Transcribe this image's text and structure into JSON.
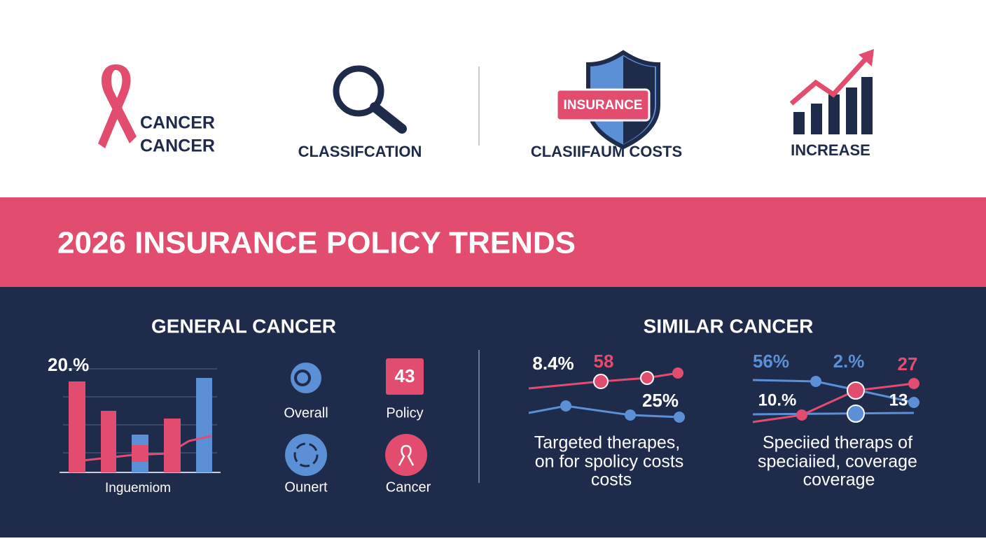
{
  "top": {
    "items": [
      {
        "lines": [
          "CANCER",
          "CANCER"
        ]
      },
      {
        "label": "CLASSIFCATION"
      },
      {
        "badge": "INSURANCE",
        "label": "CLASIIFAUM COSTS"
      },
      {
        "label": "INCREASE"
      }
    ]
  },
  "banner": {
    "title": "2026 INSURANCE POLICY TRENDS"
  },
  "left": {
    "title": "GENERAL CANCER",
    "chart_label": "20.%",
    "chart_caption": "Inguemiom",
    "icons": [
      {
        "label": "Overall"
      },
      {
        "badge": "43",
        "label": "Policy"
      },
      {
        "label": "Ounert"
      },
      {
        "label": "Cancer"
      }
    ]
  },
  "right": {
    "title": "SIMILAR CANCER",
    "panels": [
      {
        "labels": [
          "8.4%",
          "58",
          "25%"
        ],
        "caption": [
          "Targeted therapes,",
          "on for spolicy costs",
          "costs"
        ]
      },
      {
        "labels": [
          "56%",
          "2.%",
          "27",
          "10.%",
          "13"
        ],
        "caption": [
          "Speciied theraps of",
          "speciaiied, coverage",
          "coverage"
        ]
      }
    ]
  }
}
